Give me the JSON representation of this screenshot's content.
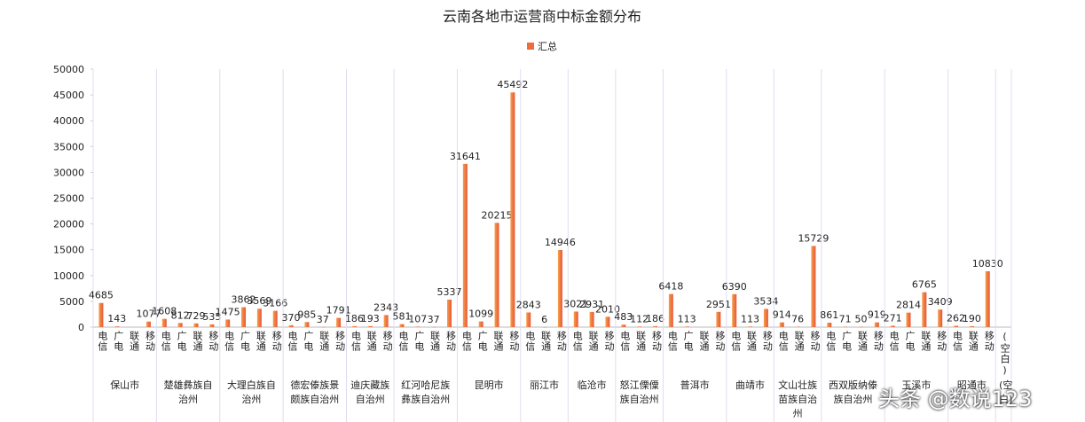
{
  "chart_data": {
    "type": "bar",
    "title": "云南各地市运营商中标金额分布",
    "groups": [
      {
        "name": "保山市",
        "categories": [
          "电信",
          "广电",
          "联通",
          "移动"
        ]
      },
      {
        "name": "楚雄彝族自治州",
        "categories": [
          "电信",
          "广电",
          "联通",
          "移动"
        ]
      },
      {
        "name": "大理白族自治州",
        "categories": [
          "电信",
          "广电",
          "联通",
          "移动"
        ]
      },
      {
        "name": "德宏傣族景颇族自治州",
        "categories": [
          "电信",
          "广电",
          "联通",
          "移动"
        ]
      },
      {
        "name": "迪庆藏族自治州",
        "categories": [
          "电信",
          "联通",
          "移动"
        ]
      },
      {
        "name": "红河哈尼族彝族自治州",
        "categories": [
          "电信",
          "广电",
          "联通",
          "移动"
        ]
      },
      {
        "name": "昆明市",
        "categories": [
          "电信",
          "广电",
          "联通",
          "移动"
        ]
      },
      {
        "name": "丽江市",
        "categories": [
          "电信",
          "联通",
          "移动"
        ]
      },
      {
        "name": "临沧市",
        "categories": [
          "电信",
          "联通",
          "移动"
        ]
      },
      {
        "name": "怒江傈僳族自治州",
        "categories": [
          "电信",
          "联通",
          "移动"
        ]
      },
      {
        "name": "普洱市",
        "categories": [
          "电信",
          "广电",
          "联通",
          "移动"
        ]
      },
      {
        "name": "曲靖市",
        "categories": [
          "电信",
          "联通",
          "移动"
        ]
      },
      {
        "name": "文山壮族苗族自治州",
        "categories": [
          "电信",
          "联通",
          "移动"
        ]
      },
      {
        "name": "西双版纳傣族自治州",
        "categories": [
          "电信",
          "广电",
          "联通",
          "移动"
        ]
      },
      {
        "name": "玉溪市",
        "categories": [
          "电信",
          "广电",
          "联通",
          "移动"
        ]
      },
      {
        "name": "昭通市",
        "categories": [
          "电信",
          "联通",
          "移动"
        ]
      },
      {
        "name": "(空白)",
        "categories": [
          "(空白)"
        ]
      }
    ],
    "series": [
      {
        "name": "汇总",
        "color": "#ee6b3b",
        "values": [
          4685,
          143,
          null,
          1077,
          1608,
          812,
          729,
          535,
          1475,
          3862,
          3569,
          3166,
          370,
          985,
          37,
          1791,
          186,
          193,
          2343,
          581,
          107,
          37,
          5337,
          31641,
          1099,
          20215,
          45492,
          2843,
          6,
          14946,
          3021,
          2931,
          2010,
          483,
          112,
          186,
          6418,
          113,
          null,
          2951,
          6390,
          113,
          3534,
          914,
          76,
          15729,
          861,
          71,
          50,
          919,
          271,
          2814,
          6765,
          3409,
          262,
          190,
          10830,
          null
        ]
      }
    ],
    "ylim": [
      0,
      50000
    ],
    "yticks": [
      0,
      5000,
      10000,
      15000,
      20000,
      25000,
      30000,
      35000,
      40000,
      45000,
      50000
    ],
    "legend": "top",
    "watermark": "头条 @数说123"
  }
}
